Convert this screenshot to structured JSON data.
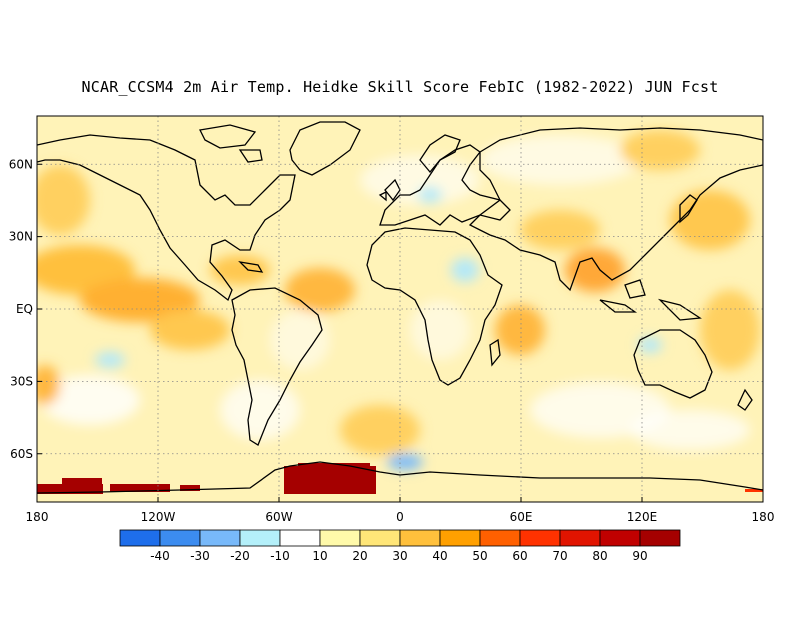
{
  "title": "NCAR_CCSM4 2m Air Temp. Heidke Skill Score FebIC (1982-2022) JUN Fcst",
  "map": {
    "lat_labels": [
      "60N",
      "30N",
      "EQ",
      "30S",
      "60S"
    ],
    "lat_values": [
      60,
      30,
      0,
      -30,
      -60
    ],
    "lon_labels": [
      "180",
      "120W",
      "60W",
      "0",
      "60E",
      "120E",
      "180"
    ],
    "lon_values": [
      -180,
      -120,
      -60,
      0,
      60,
      120,
      180
    ],
    "lat_range": [
      -80,
      80
    ],
    "lon_range": [
      -180,
      180
    ],
    "grid": "dotted"
  },
  "colorbar": {
    "labels": [
      "-40",
      "-30",
      "-20",
      "-10",
      "10",
      "20",
      "30",
      "40",
      "50",
      "60",
      "70",
      "80",
      "90"
    ],
    "colors": [
      "#1e6eeb",
      "#3c8cf0",
      "#78b9fa",
      "#b4f0fa",
      "#ffffff",
      "#fffaaa",
      "#ffe678",
      "#ffc03c",
      "#ffa000",
      "#ff6000",
      "#ff3200",
      "#e11400",
      "#c00000",
      "#a50000"
    ]
  }
}
